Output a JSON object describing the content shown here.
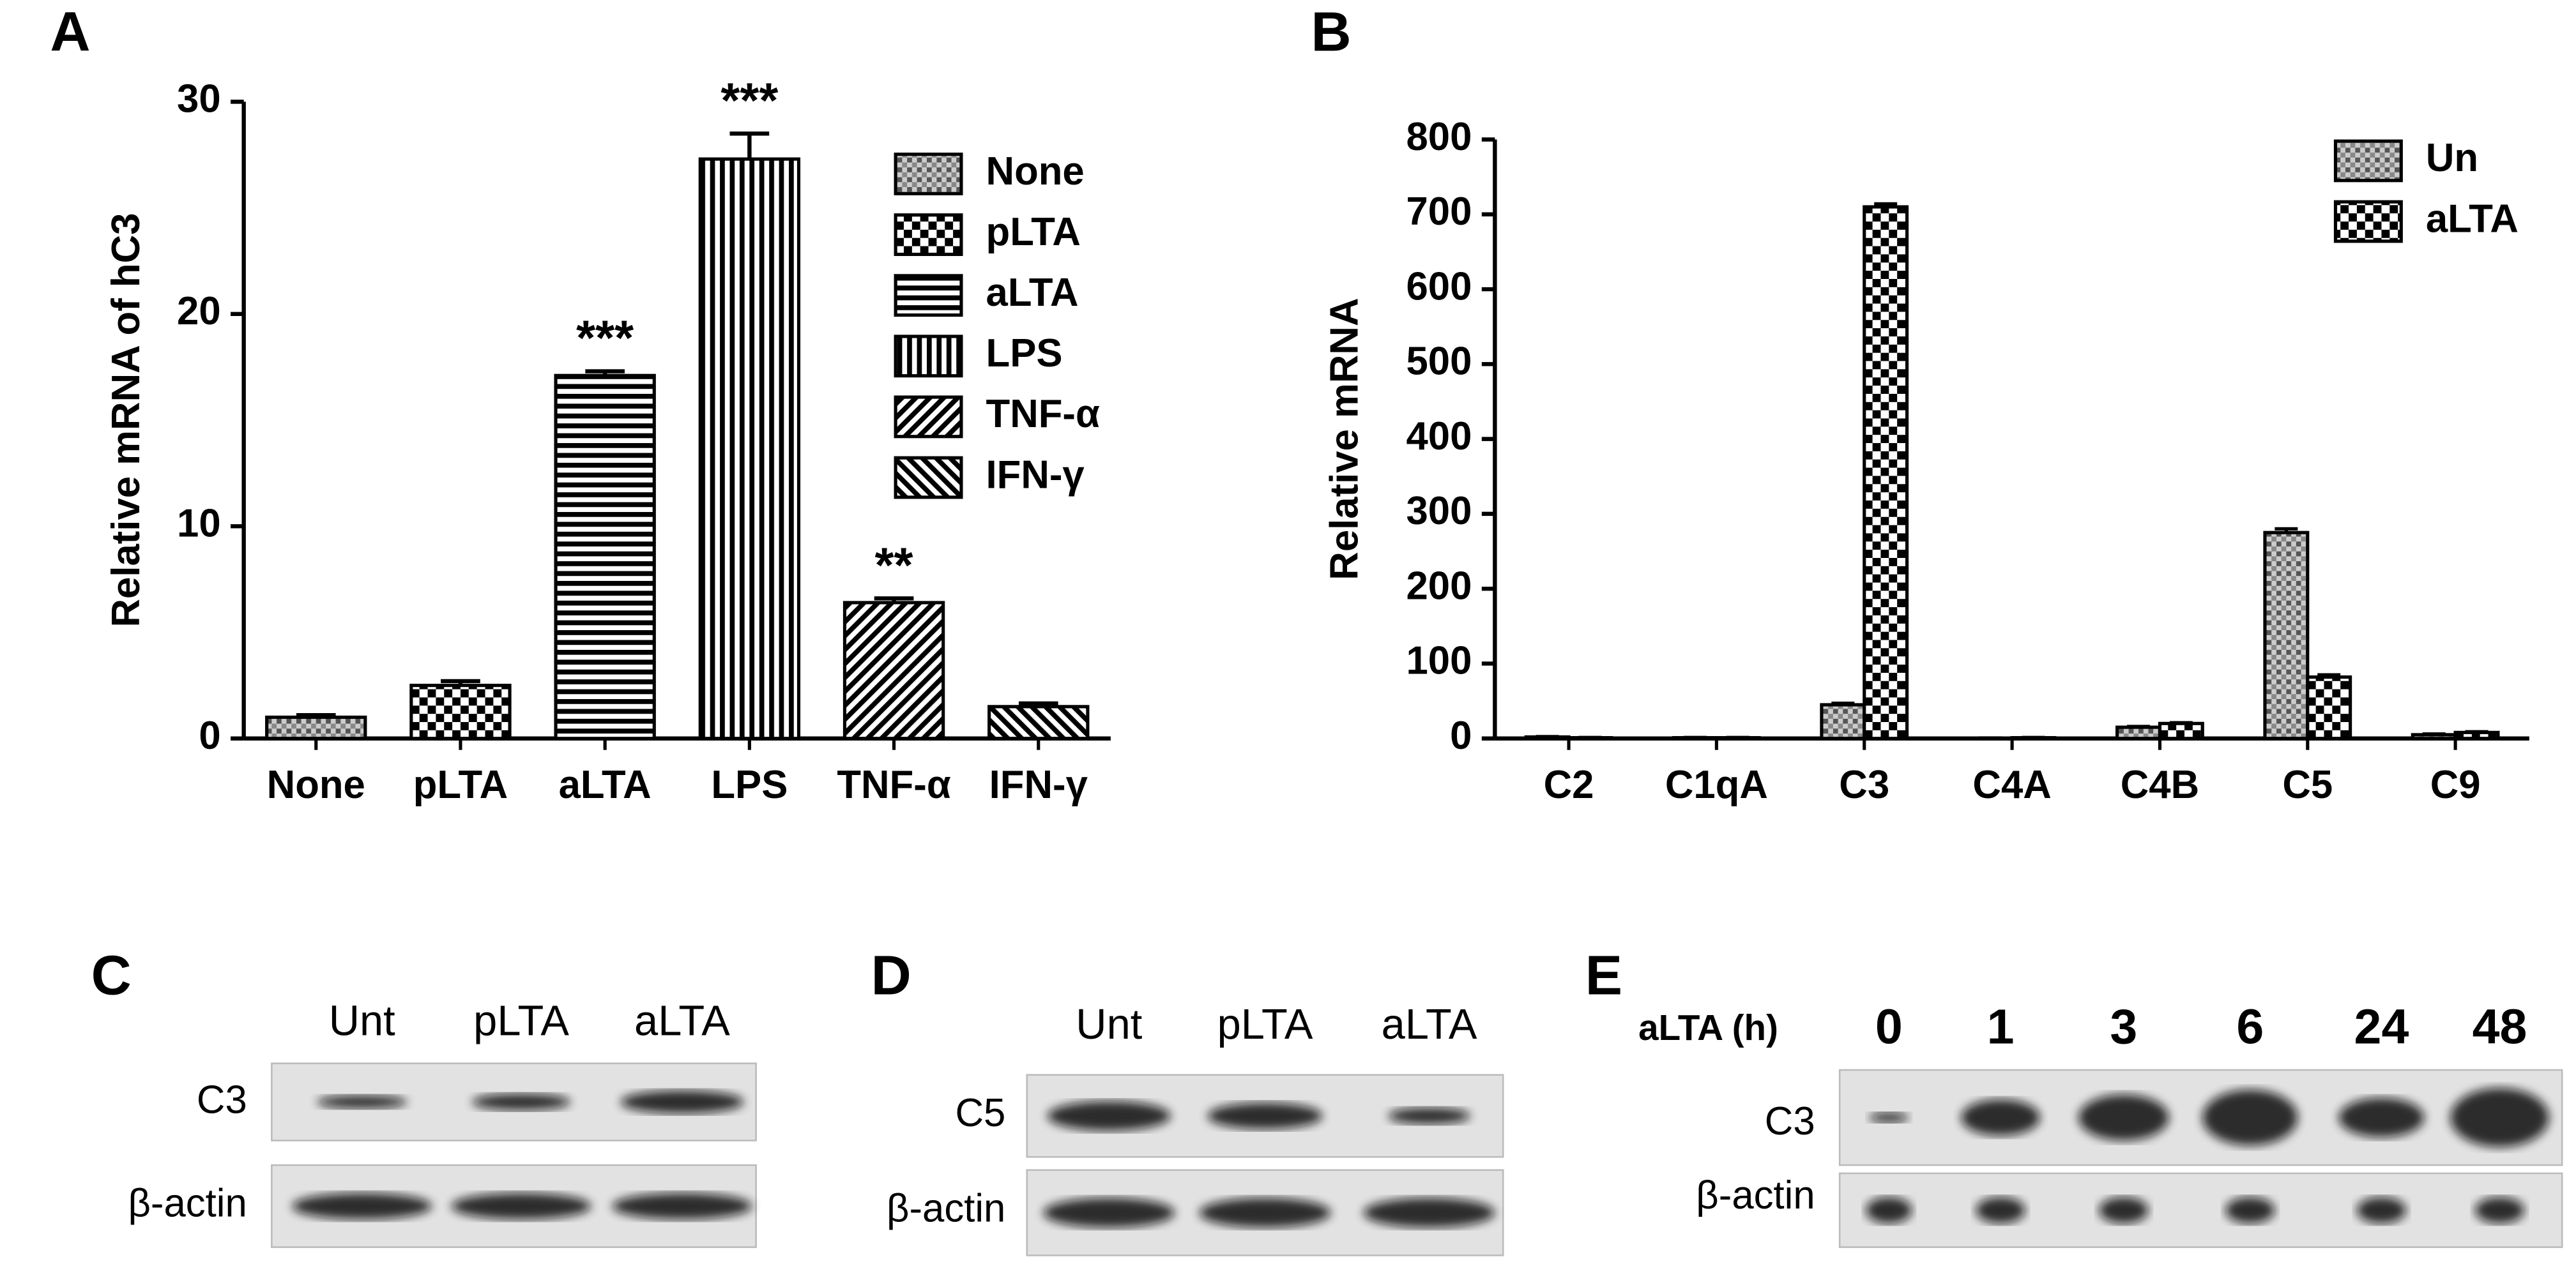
{
  "chart_data": [
    {
      "type": "bar",
      "panel": "A",
      "ylabel": "Relative mRNA of hC3",
      "categories": [
        "None",
        "pLTA",
        "aLTA",
        "LPS",
        "TNF-α",
        "IFN-γ"
      ],
      "values": [
        1,
        2.5,
        17.1,
        27.3,
        6.4,
        1.5
      ],
      "errors": [
        0.1,
        0.2,
        0.2,
        1.2,
        0.2,
        0.15
      ],
      "significance": [
        null,
        null,
        "***",
        "***",
        "**",
        null
      ],
      "patterns": [
        "dots",
        "checker",
        "hlines",
        "vlines",
        "diag",
        "diag2"
      ],
      "ylim": [
        0,
        30
      ],
      "yticks": [
        0,
        10,
        20,
        30
      ],
      "legend": "upper right"
    },
    {
      "type": "grouped-bar",
      "panel": "B",
      "ylabel": "Relative mRNA",
      "categories": [
        "C2",
        "C1qA",
        "C3",
        "C4A",
        "C4B",
        "C5",
        "C9"
      ],
      "series": [
        {
          "name": "Un",
          "pattern": "dots",
          "values": [
            2,
            1,
            45,
            0.5,
            15,
            275,
            5
          ],
          "errors": [
            0.5,
            0.3,
            2,
            0.2,
            1,
            5,
            1
          ]
        },
        {
          "name": "aLTA",
          "pattern": "checker",
          "values": [
            1,
            1,
            710,
            1,
            20,
            82,
            8
          ],
          "errors": [
            0.3,
            0.3,
            4,
            0.3,
            1,
            3,
            1
          ]
        }
      ],
      "ylim": [
        0,
        800
      ],
      "yticks": [
        0,
        100,
        200,
        300,
        400,
        500,
        600,
        700,
        800
      ],
      "legend": "upper right"
    }
  ],
  "blots": [
    {
      "panel": "C",
      "lanes": [
        "Unt",
        "pLTA",
        "aLTA"
      ],
      "rows": [
        "C3",
        "β-actin"
      ]
    },
    {
      "panel": "D",
      "lanes": [
        "Unt",
        "pLTA",
        "aLTA"
      ],
      "rows": [
        "C5",
        "β-actin"
      ]
    },
    {
      "panel": "E",
      "lane_title": "aLTA (h)",
      "lanes": [
        "0",
        "1",
        "3",
        "6",
        "24",
        "48"
      ],
      "rows": [
        "C3",
        "β-actin"
      ]
    }
  ]
}
